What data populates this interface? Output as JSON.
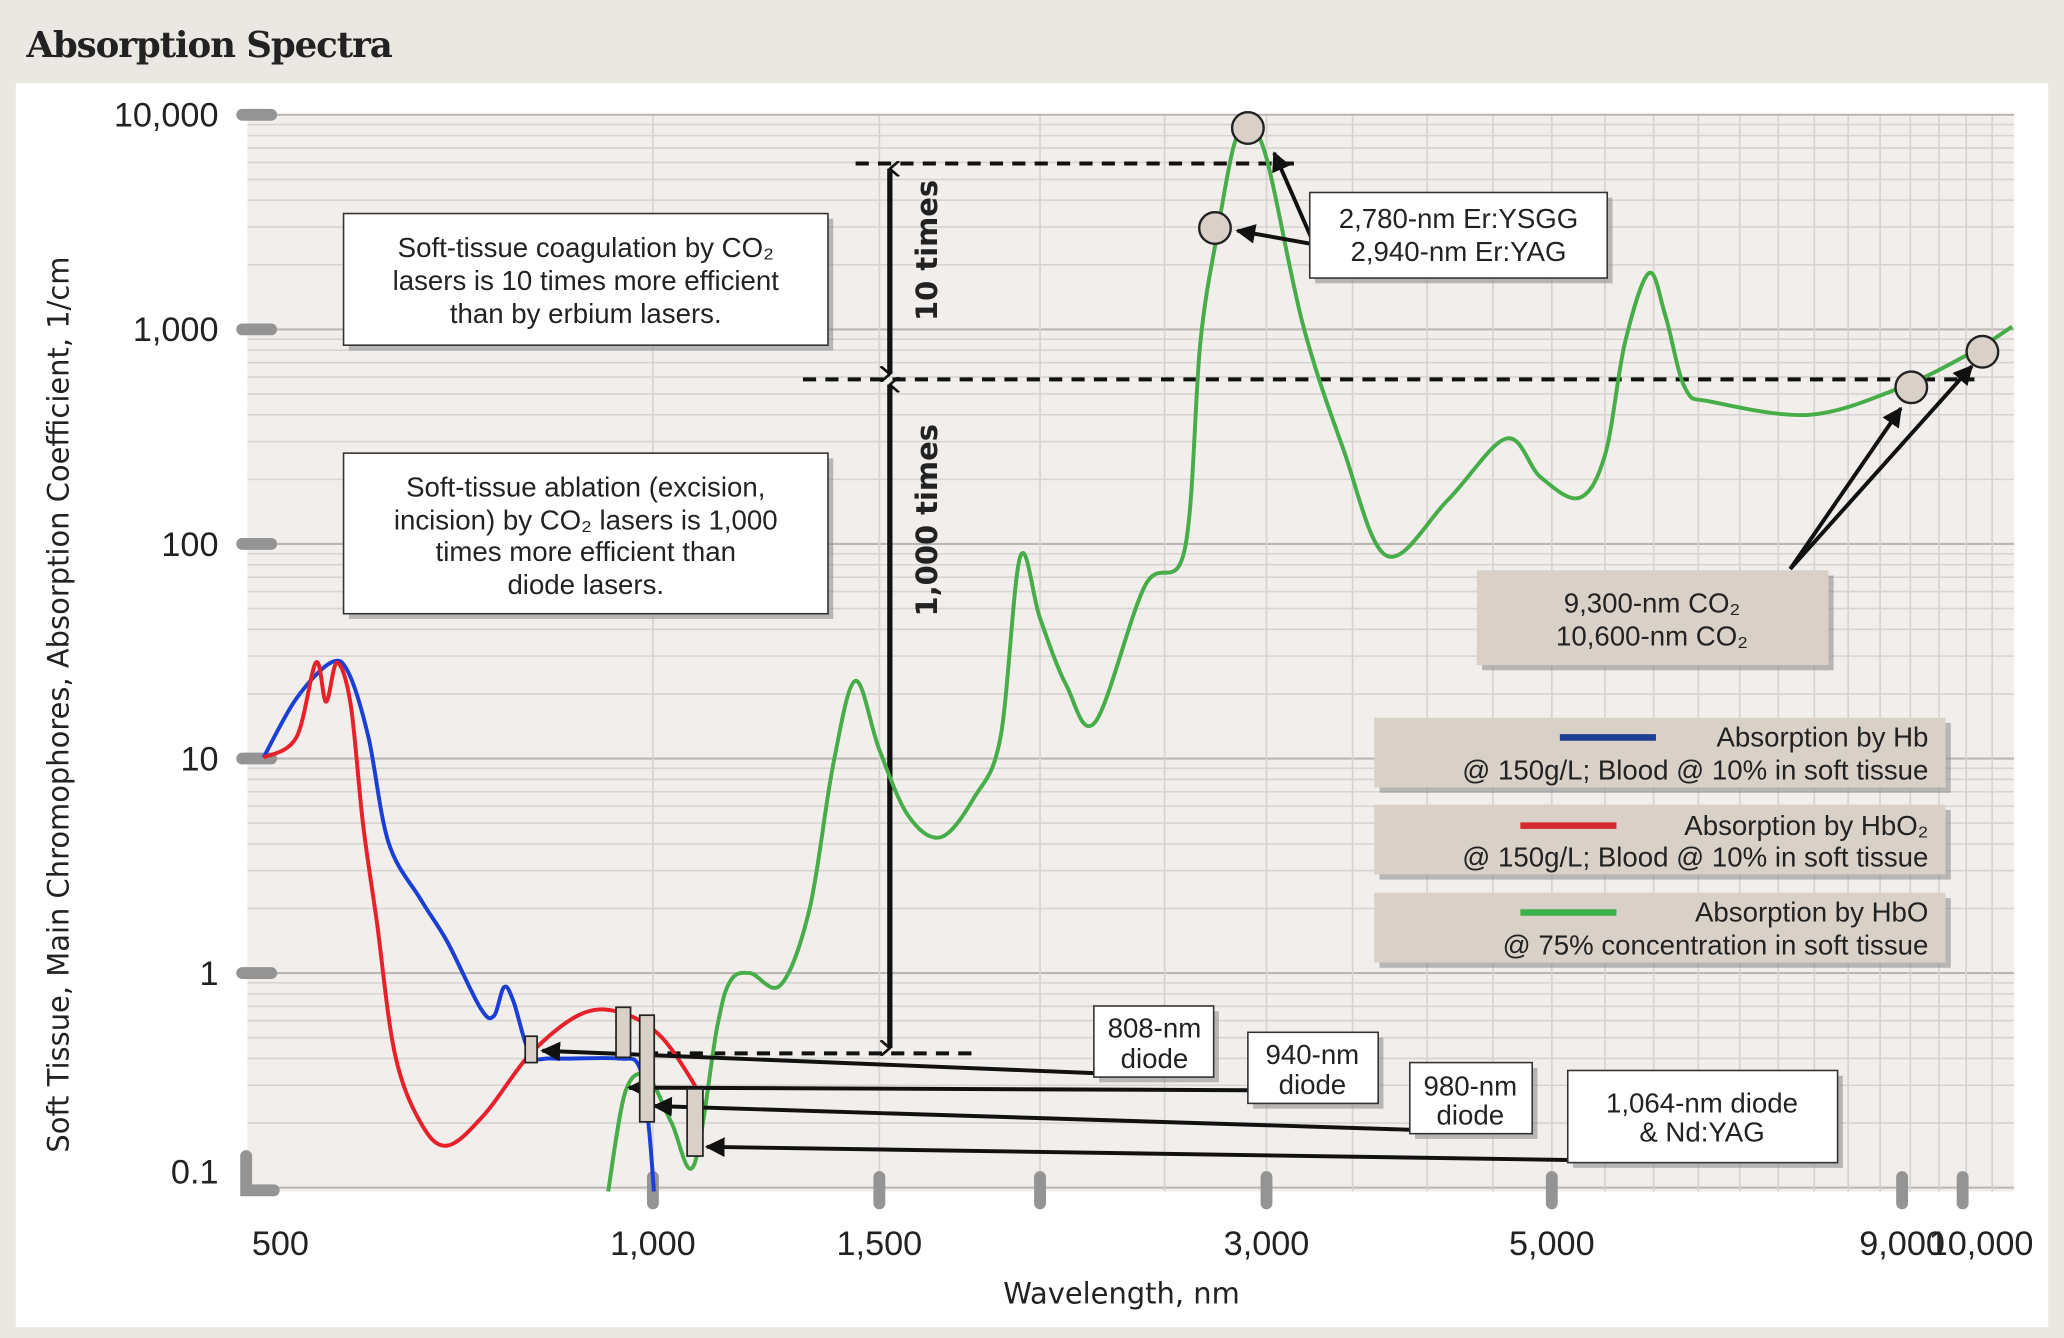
{
  "title": "Absorption Spectra",
  "chart_data": {
    "type": "line",
    "title": "Absorption Spectra",
    "xlabel": "Wavelength, nm",
    "ylabel": "Soft Tissue, Main Chromophores, Absorption Coefficient, 1/cm",
    "xscale": "log",
    "yscale": "log",
    "xlim": [
      495,
      11400
    ],
    "ylim": [
      0.1,
      10000
    ],
    "grid": true,
    "legend_position": "right",
    "x_ticks": [
      500,
      1000,
      1500,
      2000,
      3000,
      5000,
      9000,
      10000
    ],
    "x_tick_labels": [
      "500",
      "1,000",
      "1,500",
      "",
      "3,000",
      "5,000",
      "9,000",
      "10,000"
    ],
    "y_ticks": [
      0.1,
      1,
      10,
      100,
      1000,
      10000
    ],
    "y_tick_labels": [
      "0.1",
      "1",
      "10",
      "100",
      "1,000",
      "10,000"
    ],
    "series": [
      {
        "name": "Absorption by Hb @ 150g/L; Blood @ 10% in soft tissue",
        "color": "#1a3fd6",
        "points": [
          [
            498,
            10.1
          ],
          [
            528,
            19
          ],
          [
            562,
            28
          ],
          [
            580,
            25
          ],
          [
            601,
            12.5
          ],
          [
            623,
            4.05
          ],
          [
            660,
            2.2
          ],
          [
            692,
            1.4
          ],
          [
            734,
            0.69
          ],
          [
            752,
            0.63
          ],
          [
            766,
            0.86
          ],
          [
            779,
            0.74
          ],
          [
            803,
            0.42
          ],
          [
            836,
            0.4
          ],
          [
            940,
            0.4
          ],
          [
            975,
            0.37
          ],
          [
            991,
            0.21
          ],
          [
            1002,
            0.096
          ]
        ]
      },
      {
        "name": "Absorption by HbO₂ @ 150g/L; Blood @ 10% in soft tissue",
        "color": "#e8202a",
        "points": [
          [
            498,
            10.1
          ],
          [
            528,
            12.5
          ],
          [
            547,
            28
          ],
          [
            557,
            18.4
          ],
          [
            568,
            28
          ],
          [
            582,
            18
          ],
          [
            595,
            5
          ],
          [
            610,
            1.73
          ],
          [
            630,
            0.42
          ],
          [
            660,
            0.2
          ],
          [
            692,
            0.157
          ],
          [
            740,
            0.22
          ],
          [
            803,
            0.42
          ],
          [
            877,
            0.64
          ],
          [
            940,
            0.66
          ],
          [
            1010,
            0.52
          ],
          [
            1071,
            0.32
          ],
          [
            1096,
            0.24
          ]
        ]
      },
      {
        "name": "Absorption by HbO @ 75% concentration in soft tissue",
        "color": "#46ad48",
        "points": [
          [
            923,
            0.096
          ],
          [
            952,
            0.28
          ],
          [
            990,
            0.33
          ],
          [
            1034,
            0.2
          ],
          [
            1076,
            0.127
          ],
          [
            1122,
            0.56
          ],
          [
            1149,
            0.92
          ],
          [
            1190,
            1.0
          ],
          [
            1257,
            0.88
          ],
          [
            1324,
            2.0
          ],
          [
            1381,
            9.4
          ],
          [
            1437,
            23
          ],
          [
            1500,
            11
          ],
          [
            1580,
            5.4
          ],
          [
            1675,
            4.3
          ],
          [
            1778,
            6.6
          ],
          [
            1863,
            12.5
          ],
          [
            1930,
            87
          ],
          [
            2000,
            45
          ],
          [
            2096,
            22
          ],
          [
            2208,
            14.8
          ],
          [
            2414,
            64
          ],
          [
            2590,
            93
          ],
          [
            2665,
            870
          ],
          [
            2750,
            2900
          ],
          [
            2830,
            7200
          ],
          [
            2900,
            8700
          ],
          [
            3000,
            6300
          ],
          [
            3200,
            1070
          ],
          [
            3440,
            280
          ],
          [
            3720,
            88
          ],
          [
            4150,
            160
          ],
          [
            4610,
            310
          ],
          [
            4900,
            205
          ],
          [
            5250,
            164
          ],
          [
            5500,
            260
          ],
          [
            5700,
            870
          ],
          [
            5950,
            1830
          ],
          [
            6130,
            1150
          ],
          [
            6350,
            530
          ],
          [
            6660,
            460
          ],
          [
            7930,
            400
          ],
          [
            9300,
            530
          ],
          [
            10600,
            780
          ],
          [
            11400,
            1030
          ]
        ]
      }
    ],
    "laser_markers": [
      {
        "label": "2,780-nm Er:YSGG",
        "wavelength": 2780,
        "value": 2900
      },
      {
        "label": "2,940-nm Er:YAG",
        "wavelength": 2940,
        "value": 8700
      },
      {
        "label": "9,300-nm CO₂",
        "wavelength": 9300,
        "value": 530
      },
      {
        "label": "10,600-nm CO₂",
        "wavelength": 10600,
        "value": 780
      },
      {
        "label": "808-nm diode",
        "wavelength": 808
      },
      {
        "label": "940-nm diode",
        "wavelength": 940
      },
      {
        "label": "980-nm diode",
        "wavelength": 980
      },
      {
        "label": "1,064-nm diode & Nd:YAG",
        "wavelength": 1064
      }
    ],
    "reference_levels": [
      6000,
      550,
      0.4
    ],
    "annotations": {
      "ten_times": "10 times",
      "thousand_times": "1,000 times",
      "coag": [
        "Soft-tissue coagulation by CO₂",
        "lasers is 10 times more efficient",
        "than by erbium lasers."
      ],
      "ablation": [
        "Soft-tissue ablation (excision,",
        "incision) by CO₂ lasers is 1,000",
        "times more efficient than",
        "diode lasers."
      ],
      "erbium": [
        "2,780-nm Er:YSGG",
        "2,940-nm Er:YAG"
      ],
      "co2": [
        "9,300-nm CO₂",
        "10,600-nm CO₂"
      ],
      "d808": [
        "808-nm",
        "diode"
      ],
      "d940": [
        "940-nm",
        "diode"
      ],
      "d980": [
        "980-nm",
        "diode"
      ],
      "d1064": [
        "1,064-nm diode",
        "& Nd:YAG"
      ]
    },
    "legend": [
      {
        "line1": "Absorption by Hb",
        "line2": "@ 150g/L; Blood @ 10% in soft tissue",
        "color": "#1f3f93"
      },
      {
        "line1": "Absorption by HbO₂",
        "line2": "@ 150g/L; Blood @ 10% in soft tissue",
        "color": "#d42a2e"
      },
      {
        "line1": "Absorption by HbO",
        "line2": "@ 75% concentration in soft tissue",
        "color": "#3cb04a"
      }
    ]
  }
}
